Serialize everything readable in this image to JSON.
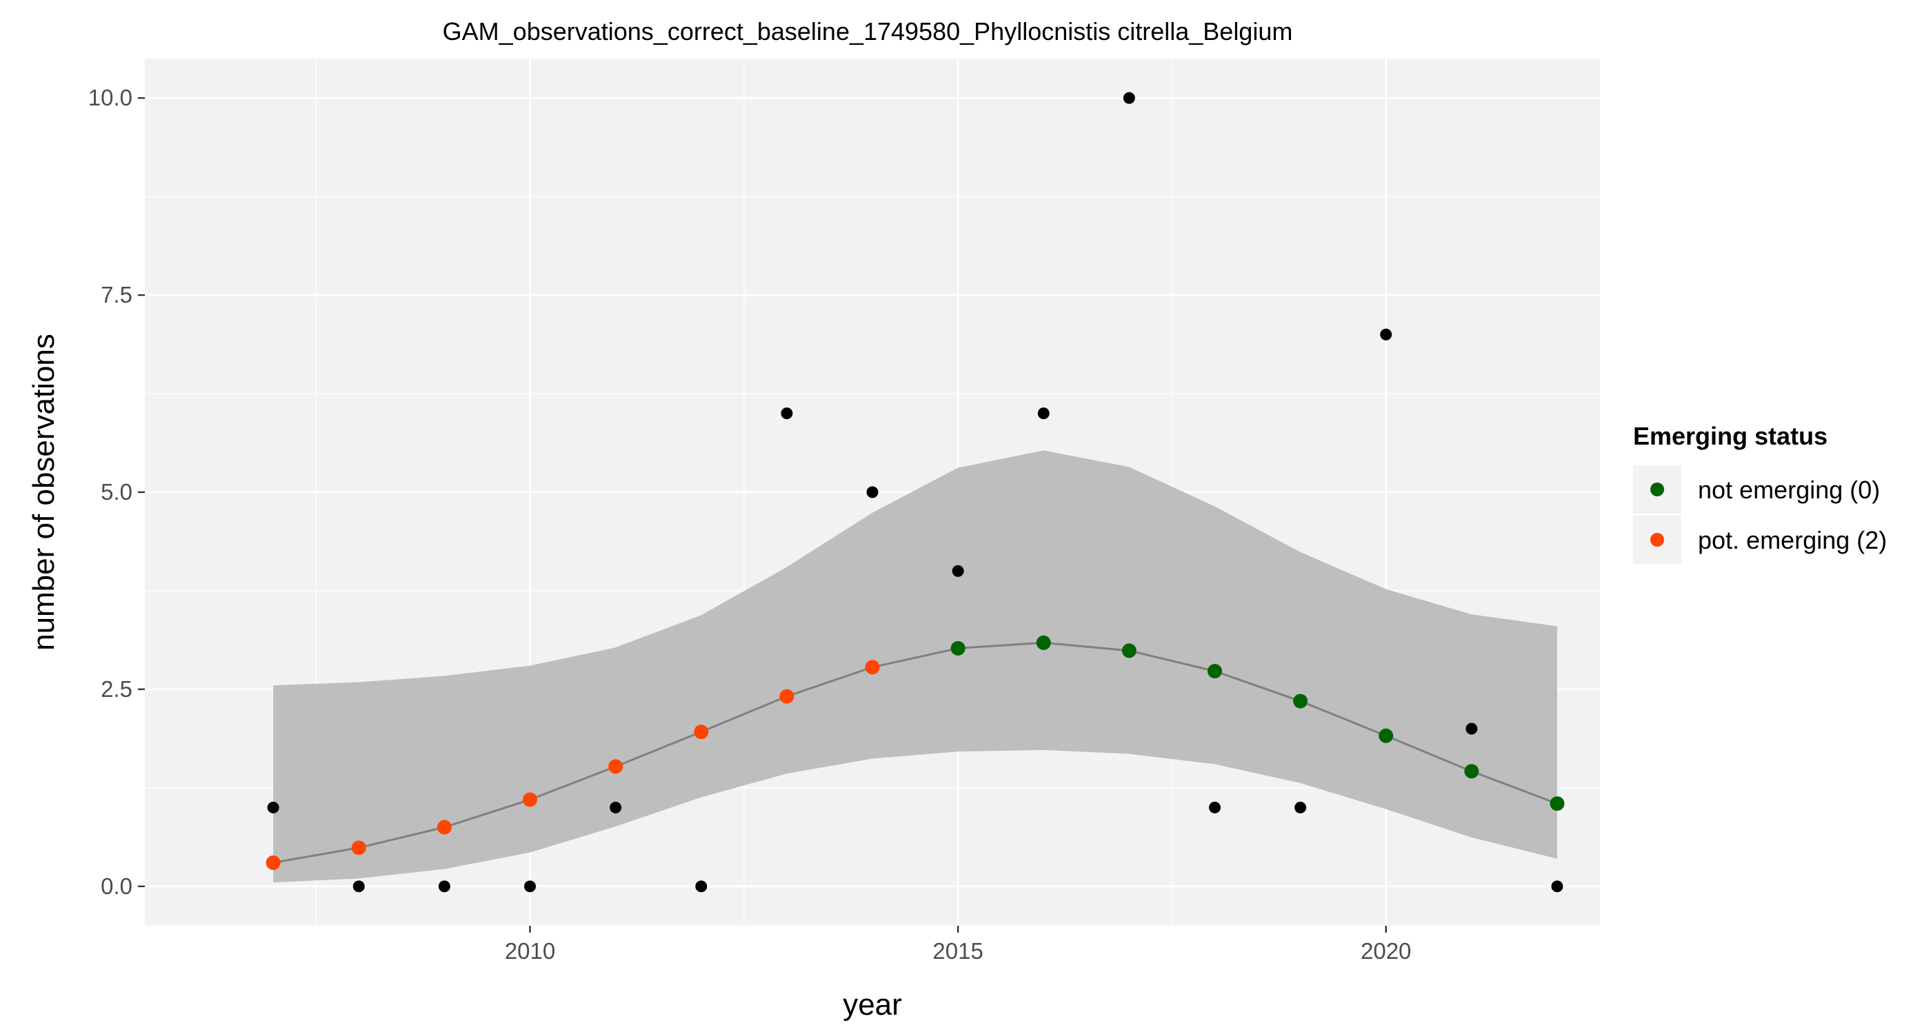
{
  "chart_data": {
    "type": "scatter",
    "title": "GAM_observations_correct_baseline_1749580_Phyllocnistis citrella_Belgium",
    "xlabel": "year",
    "ylabel": "number of observations",
    "xlim": [
      2005.5,
      2022.5
    ],
    "ylim": [
      -0.5,
      10.5
    ],
    "x_ticks": [
      2010,
      2015,
      2020
    ],
    "x_tick_labels": [
      "2010",
      "2015",
      "2020"
    ],
    "y_ticks": [
      0.0,
      2.5,
      5.0,
      7.5,
      10.0
    ],
    "y_tick_labels": [
      "0.0",
      "2.5",
      "5.0",
      "7.5",
      "10.0"
    ],
    "grid": true,
    "panel_background": "#f2f2f2",
    "legend": {
      "title": "Emerging status",
      "position": "right",
      "entries": [
        {
          "label": "not emerging (0)",
          "color": "#006400"
        },
        {
          "label": "pot. emerging (2)",
          "color": "#ff4500"
        }
      ]
    },
    "observed": {
      "color": "#000000",
      "x": [
        2007,
        2008,
        2009,
        2010,
        2011,
        2012,
        2013,
        2014,
        2015,
        2016,
        2017,
        2018,
        2019,
        2020,
        2021,
        2022
      ],
      "y": [
        1,
        0,
        0,
        0,
        1,
        0,
        6,
        5,
        4,
        6,
        10,
        1,
        1,
        7,
        2,
        0
      ]
    },
    "fitted": {
      "line_color": "#808080",
      "band_color": "#bebebe",
      "x": [
        2007,
        2008,
        2009,
        2010,
        2011,
        2012,
        2013,
        2014,
        2015,
        2016,
        2017,
        2018,
        2019,
        2020,
        2021,
        2022
      ],
      "y": [
        0.3,
        0.49,
        0.75,
        1.1,
        1.52,
        1.96,
        2.41,
        2.78,
        3.02,
        3.09,
        2.99,
        2.73,
        2.35,
        1.91,
        1.46,
        1.05
      ],
      "lower": [
        0.05,
        0.1,
        0.22,
        0.43,
        0.76,
        1.13,
        1.43,
        1.62,
        1.71,
        1.73,
        1.68,
        1.55,
        1.31,
        0.98,
        0.62,
        0.35
      ],
      "upper": [
        2.55,
        2.59,
        2.67,
        2.8,
        3.03,
        3.44,
        4.05,
        4.74,
        5.31,
        5.53,
        5.32,
        4.82,
        4.24,
        3.77,
        3.45,
        3.3
      ],
      "status": [
        2,
        2,
        2,
        2,
        2,
        2,
        2,
        2,
        0,
        0,
        0,
        0,
        0,
        0,
        0,
        0
      ]
    }
  }
}
